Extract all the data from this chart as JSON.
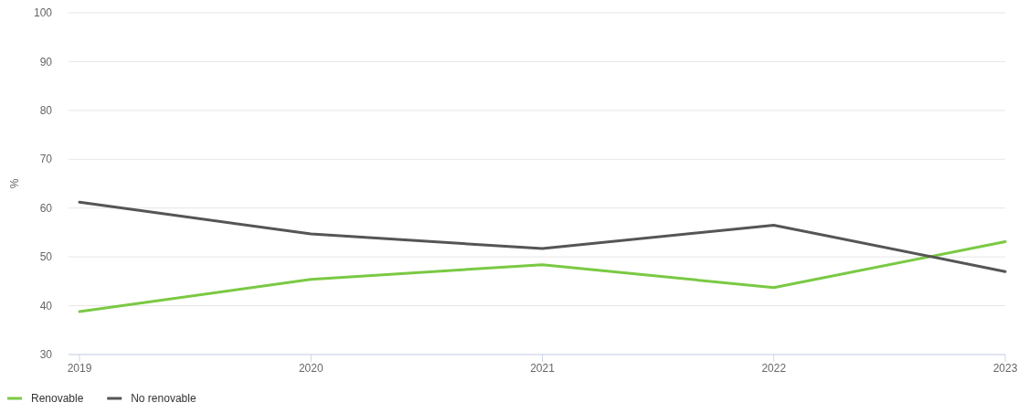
{
  "chart_data": {
    "type": "line",
    "ylabel": "%",
    "categories": [
      "2019",
      "2020",
      "2021",
      "2022",
      "2023"
    ],
    "series": [
      {
        "name": "Renovable",
        "color": "#7ac943",
        "values": [
          38.8,
          45.4,
          48.4,
          43.7,
          53.1
        ]
      },
      {
        "name": "No renovable",
        "color": "#555555",
        "values": [
          61.2,
          54.7,
          51.7,
          56.5,
          47.0
        ]
      }
    ],
    "ylim": [
      30,
      100
    ],
    "yticks": [
      30,
      40,
      50,
      60,
      70,
      80,
      90,
      100
    ],
    "grid": "y",
    "legend": "bottom left",
    "marker": "none",
    "line_style": "solid"
  }
}
